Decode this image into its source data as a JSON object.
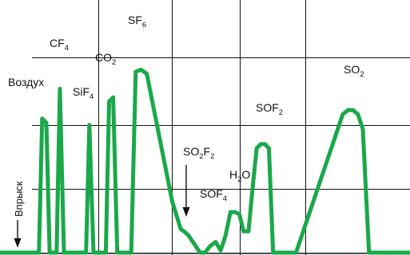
{
  "chart_data": {
    "type": "line",
    "title": "",
    "xlabel": "",
    "ylabel": "",
    "grid": true,
    "legend": "none",
    "series_color": "#1aa84a",
    "grid_color": "#111111",
    "injection_label": "Впрыск",
    "xlim": [
      0,
      100
    ],
    "ylim": [
      0,
      100
    ],
    "x": [
      0,
      9.5,
      10.3,
      11.3,
      12.1,
      13.8,
      14.6,
      15.6,
      21.0,
      21.8,
      22.8,
      25.8,
      26.6,
      27.6,
      28.6,
      32.0,
      33.1,
      34.4,
      35.8,
      42.0,
      44.1,
      44.9,
      46.0,
      47.4,
      48.8,
      50.0,
      51.2,
      52.6,
      53.8,
      55.0,
      56.2,
      57.4,
      58.4,
      59.4,
      60.6,
      61.6,
      62.6,
      63.6,
      64.6,
      65.6,
      66.6,
      67.6,
      68.4,
      69.4,
      70.5,
      72.2,
      83.6,
      84.9,
      86.1,
      87.3,
      88.5,
      90.0,
      95.4,
      100
    ],
    "y": [
      0,
      0,
      63,
      61,
      0,
      0,
      77,
      0,
      0,
      60,
      0,
      0,
      71,
      73,
      0,
      0,
      85,
      86,
      84,
      24,
      11,
      10,
      8,
      4,
      0,
      0,
      3,
      5,
      1,
      8,
      19,
      19,
      18,
      10,
      10,
      30,
      49,
      51,
      51,
      49,
      0,
      0,
      0,
      0,
      0,
      0,
      65,
      67,
      67,
      65,
      58,
      0,
      0,
      0
    ],
    "annotations": [
      {
        "id": "air",
        "label": "Воздух"
      },
      {
        "id": "cf4",
        "label": "CF",
        "sub": "4"
      },
      {
        "id": "sif4",
        "label": "SiF",
        "sub": "4"
      },
      {
        "id": "co2",
        "label": "CO",
        "sub": "2"
      },
      {
        "id": "sf6",
        "label": "SF",
        "sub": "6"
      },
      {
        "id": "so2f2",
        "label": "SO",
        "sub": "2",
        "label2": "F",
        "sub2": "2"
      },
      {
        "id": "h2o",
        "label": "H",
        "sub": "2",
        "label2": "O",
        "sub2": ""
      },
      {
        "id": "sof4",
        "label": "SOF",
        "sub": "4"
      },
      {
        "id": "sof2",
        "label": "SOF",
        "sub": "2"
      },
      {
        "id": "so2",
        "label": "SO",
        "sub": "2"
      }
    ]
  }
}
